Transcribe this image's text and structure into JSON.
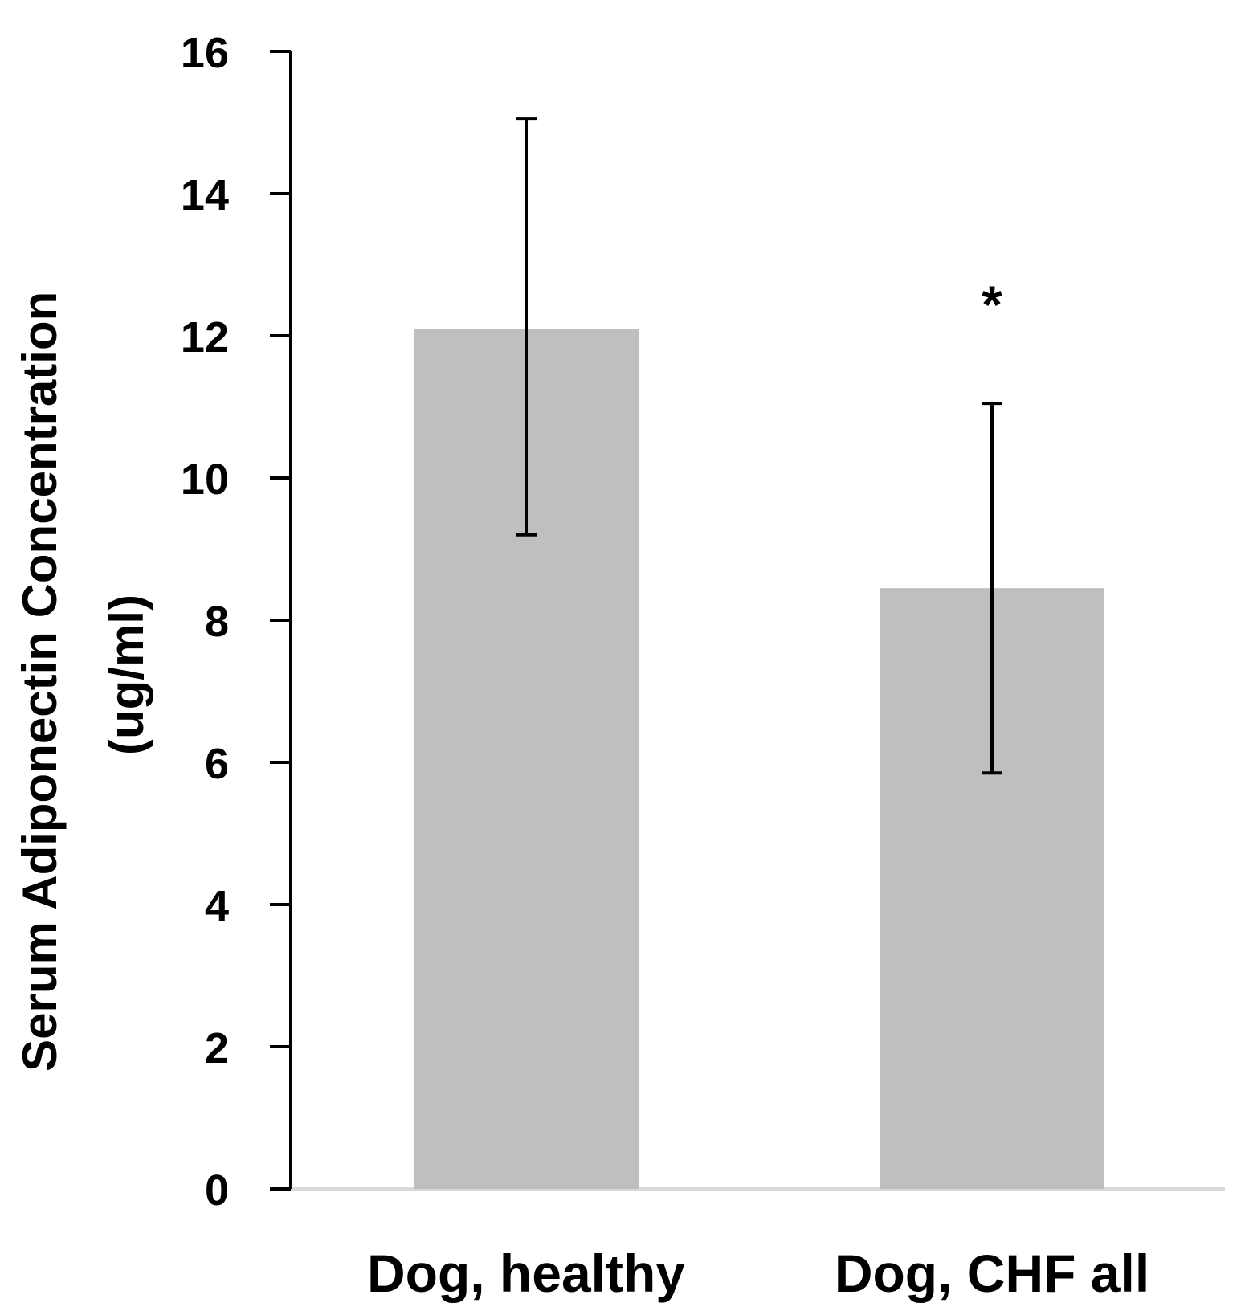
{
  "chart_data": {
    "type": "bar",
    "title": "",
    "xlabel": "",
    "ylabel_lines": [
      "Serum Adiponectin Concentration",
      "(ug/ml)"
    ],
    "categories": [
      "Dog, healthy",
      "Dog, CHF all"
    ],
    "values": [
      12.1,
      8.45
    ],
    "error_upper": [
      15.05,
      11.05
    ],
    "error_lower": [
      9.2,
      5.85
    ],
    "annotations": [
      "",
      "*"
    ],
    "ylim": [
      0,
      16
    ],
    "yticks": [
      0,
      2,
      4,
      6,
      8,
      10,
      12,
      14,
      16
    ],
    "grid": false,
    "legend": "none",
    "bar_color": "#bfbfbf",
    "axis_color": "#000000",
    "baseline_color": "#d9d9d9"
  }
}
